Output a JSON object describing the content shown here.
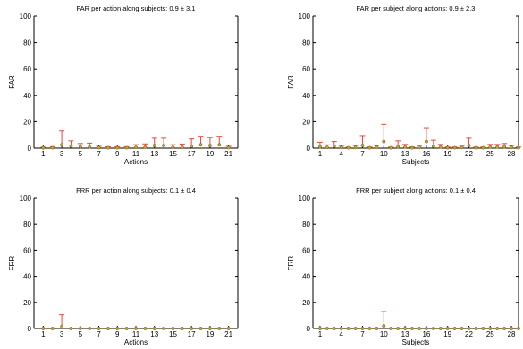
{
  "colors": {
    "errorbar": "#e8473a",
    "marker": "#c9a227",
    "axis": "#000000"
  },
  "chart_data": [
    {
      "type": "scatter",
      "id": "far-actions",
      "title": "FAR per action along subjects: 0.9 ± 3.1",
      "xlabel": "Actions",
      "ylabel": "FAR",
      "xlim": [
        0,
        22
      ],
      "ylim": [
        0,
        100
      ],
      "xticks": [
        1,
        3,
        5,
        7,
        9,
        11,
        13,
        15,
        17,
        19,
        21
      ],
      "yticks": [
        0,
        20,
        40,
        60,
        80,
        100
      ],
      "x": [
        1,
        2,
        3,
        4,
        5,
        6,
        7,
        8,
        9,
        10,
        11,
        12,
        13,
        14,
        15,
        16,
        17,
        18,
        19,
        20,
        21
      ],
      "y": [
        0.2,
        0.3,
        2.5,
        1.5,
        1.0,
        0.8,
        0.4,
        0.3,
        0.3,
        0.3,
        0.6,
        0.7,
        2.0,
        2.0,
        0.6,
        0.6,
        1.5,
        2.5,
        2.0,
        2.5,
        0.4
      ],
      "err": [
        0.5,
        0.8,
        10.5,
        4.0,
        2.5,
        3.0,
        1.0,
        0.8,
        0.8,
        0.8,
        2.0,
        2.5,
        5.5,
        5.5,
        2.0,
        2.5,
        5.5,
        6.5,
        6.0,
        6.5,
        1.0
      ]
    },
    {
      "type": "scatter",
      "id": "far-subjects",
      "title": "FAR per subject along actions: 0.9 ± 2.3",
      "xlabel": "Subjects",
      "ylabel": "FAR",
      "xlim": [
        0,
        29
      ],
      "ylim": [
        0,
        100
      ],
      "xticks": [
        1,
        4,
        7,
        10,
        13,
        16,
        19,
        22,
        25,
        28
      ],
      "yticks": [
        0,
        20,
        40,
        60,
        80,
        100
      ],
      "x": [
        1,
        2,
        3,
        4,
        5,
        6,
        7,
        8,
        9,
        10,
        11,
        12,
        13,
        14,
        15,
        16,
        17,
        18,
        19,
        20,
        21,
        22,
        23,
        24,
        25,
        26,
        27,
        28,
        29
      ],
      "y": [
        1.0,
        0.5,
        1.5,
        0.5,
        0.3,
        0.5,
        2.0,
        0.3,
        0.5,
        5.0,
        0.3,
        1.0,
        0.8,
        0.3,
        0.5,
        5.0,
        1.5,
        0.8,
        0.3,
        0.3,
        0.5,
        2.0,
        0.3,
        0.3,
        0.8,
        0.8,
        1.0,
        0.5,
        0.3
      ],
      "err": [
        3.5,
        2.0,
        3.5,
        1.0,
        0.5,
        1.5,
        7.5,
        0.5,
        1.5,
        13.0,
        0.5,
        4.5,
        2.0,
        0.5,
        1.0,
        10.5,
        4.5,
        2.0,
        0.5,
        0.5,
        1.0,
        5.5,
        0.5,
        0.5,
        2.0,
        2.0,
        2.5,
        1.5,
        0.5
      ]
    },
    {
      "type": "scatter",
      "id": "frr-actions",
      "title": "FRR per action along subjects: 0.1 ± 0.4",
      "xlabel": "Actions",
      "ylabel": "FRR",
      "xlim": [
        0,
        22
      ],
      "ylim": [
        0,
        100
      ],
      "xticks": [
        1,
        3,
        5,
        7,
        9,
        11,
        13,
        15,
        17,
        19,
        21
      ],
      "yticks": [
        0,
        20,
        40,
        60,
        80,
        100
      ],
      "x": [
        1,
        2,
        3,
        4,
        5,
        6,
        7,
        8,
        9,
        10,
        11,
        12,
        13,
        14,
        15,
        16,
        17,
        18,
        19,
        20,
        21
      ],
      "y": [
        0,
        0,
        1.5,
        0,
        0,
        0,
        0,
        0,
        0,
        0,
        0,
        0,
        0,
        0,
        0,
        0,
        0,
        0,
        0,
        0,
        0
      ],
      "err": [
        0,
        0,
        9.0,
        0,
        0,
        0,
        0,
        0,
        0,
        0,
        0,
        0,
        0,
        0,
        0,
        0,
        0,
        0,
        0,
        0,
        0
      ]
    },
    {
      "type": "scatter",
      "id": "frr-subjects",
      "title": "FRR per subject along actions: 0.1 ± 0.4",
      "xlabel": "Subjects",
      "ylabel": "FRR",
      "xlim": [
        0,
        29
      ],
      "ylim": [
        0,
        100
      ],
      "xticks": [
        1,
        4,
        7,
        10,
        13,
        16,
        19,
        22,
        25,
        28
      ],
      "yticks": [
        0,
        20,
        40,
        60,
        80,
        100
      ],
      "x": [
        1,
        2,
        3,
        4,
        5,
        6,
        7,
        8,
        9,
        10,
        11,
        12,
        13,
        14,
        15,
        16,
        17,
        18,
        19,
        20,
        21,
        22,
        23,
        24,
        25,
        26,
        27,
        28,
        29
      ],
      "y": [
        0,
        0,
        0,
        0,
        0,
        0,
        0,
        0,
        0,
        2.0,
        0,
        0,
        0,
        0,
        0,
        0,
        0,
        0,
        0,
        0,
        0,
        0,
        0,
        0,
        0,
        0,
        0,
        0,
        0
      ],
      "err": [
        0,
        0,
        0,
        0,
        0,
        0,
        0,
        0,
        0,
        11.0,
        0,
        0,
        0,
        0,
        0,
        0,
        0,
        0,
        0,
        0,
        0,
        0,
        0,
        0,
        0,
        0,
        0,
        0,
        0
      ]
    }
  ]
}
